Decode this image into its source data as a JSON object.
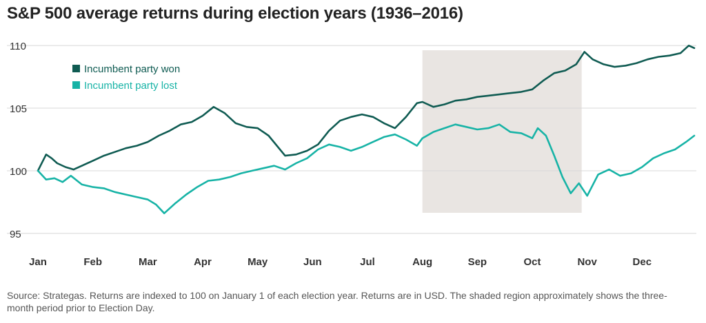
{
  "title": "S&P 500 average returns during election years (1936–2016)",
  "source": "Source: Strategas. Returns are indexed to 100 on January 1 of each election year. Returns are in USD. The shaded region approximately shows the three-month period prior to Election Day.",
  "colors": {
    "won": "#0f5b52",
    "lost": "#17b3a6",
    "shade": "#e9e5e2",
    "grid": "#d8d8d8"
  },
  "chart_data": {
    "type": "line",
    "title": "S&P 500 average returns during election years (1936–2016)",
    "xlabel": "",
    "ylabel": "",
    "x_ticks": [
      "Jan",
      "Feb",
      "Mar",
      "Apr",
      "May",
      "Jun",
      "Jul",
      "Aug",
      "Sep",
      "Oct",
      "Nov",
      "Dec"
    ],
    "y_ticks": [
      95,
      100,
      105,
      110
    ],
    "ylim": [
      94,
      111
    ],
    "xlim": [
      0,
      11.95
    ],
    "shaded_region": {
      "x_start": 7.0,
      "x_end": 9.9
    },
    "legend_position": "top-left",
    "series": [
      {
        "name": "Incumbent party won",
        "color": "#0f5b52",
        "x": [
          0,
          0.15,
          0.25,
          0.35,
          0.5,
          0.65,
          0.8,
          1.0,
          1.2,
          1.4,
          1.6,
          1.8,
          2.0,
          2.2,
          2.4,
          2.6,
          2.8,
          3.0,
          3.2,
          3.4,
          3.6,
          3.8,
          4.0,
          4.2,
          4.5,
          4.7,
          4.9,
          5.1,
          5.3,
          5.5,
          5.7,
          5.9,
          6.1,
          6.3,
          6.5,
          6.7,
          6.9,
          7.0,
          7.2,
          7.4,
          7.6,
          7.8,
          8.0,
          8.2,
          8.4,
          8.6,
          8.8,
          9.0,
          9.2,
          9.4,
          9.6,
          9.8,
          9.95,
          10.1,
          10.3,
          10.5,
          10.7,
          10.9,
          11.1,
          11.3,
          11.5,
          11.7,
          11.85,
          11.95
        ],
        "values": [
          100.0,
          101.3,
          101.0,
          100.6,
          100.3,
          100.1,
          100.4,
          100.8,
          101.2,
          101.5,
          101.8,
          102.0,
          102.3,
          102.8,
          103.2,
          103.7,
          103.9,
          104.4,
          105.1,
          104.6,
          103.8,
          103.5,
          103.4,
          102.8,
          101.2,
          101.3,
          101.6,
          102.1,
          103.2,
          104.0,
          104.3,
          104.5,
          104.3,
          103.8,
          103.4,
          104.3,
          105.4,
          105.5,
          105.1,
          105.3,
          105.6,
          105.7,
          105.9,
          106.0,
          106.1,
          106.2,
          106.3,
          106.5,
          107.2,
          107.8,
          108.0,
          108.5,
          109.5,
          108.9,
          108.5,
          108.3,
          108.4,
          108.6,
          108.9,
          109.1,
          109.2,
          109.4,
          110.0,
          109.8
        ]
      },
      {
        "name": "Incumbent party lost",
        "color": "#17b3a6",
        "x": [
          0,
          0.15,
          0.3,
          0.45,
          0.6,
          0.8,
          1.0,
          1.2,
          1.4,
          1.6,
          1.8,
          2.0,
          2.15,
          2.3,
          2.5,
          2.7,
          2.9,
          3.1,
          3.3,
          3.5,
          3.7,
          3.9,
          4.1,
          4.3,
          4.5,
          4.7,
          4.9,
          5.1,
          5.3,
          5.5,
          5.7,
          5.9,
          6.1,
          6.3,
          6.5,
          6.7,
          6.9,
          7.0,
          7.2,
          7.4,
          7.6,
          7.8,
          8.0,
          8.2,
          8.4,
          8.6,
          8.8,
          9.0,
          9.1,
          9.25,
          9.4,
          9.55,
          9.7,
          9.85,
          10.0,
          10.2,
          10.4,
          10.6,
          10.8,
          11.0,
          11.2,
          11.4,
          11.6,
          11.8,
          11.95
        ],
        "values": [
          100.0,
          99.3,
          99.4,
          99.1,
          99.6,
          98.9,
          98.7,
          98.6,
          98.3,
          98.1,
          97.9,
          97.7,
          97.3,
          96.6,
          97.4,
          98.1,
          98.7,
          99.2,
          99.3,
          99.5,
          99.8,
          100.0,
          100.2,
          100.4,
          100.1,
          100.6,
          101.0,
          101.7,
          102.1,
          101.9,
          101.6,
          101.9,
          102.3,
          102.7,
          102.9,
          102.5,
          102.0,
          102.6,
          103.1,
          103.4,
          103.7,
          103.5,
          103.3,
          103.4,
          103.7,
          103.1,
          103.0,
          102.6,
          103.4,
          102.8,
          101.2,
          99.5,
          98.2,
          99.0,
          98.0,
          99.7,
          100.1,
          99.6,
          99.8,
          100.3,
          101.0,
          101.4,
          101.7,
          102.3,
          102.8
        ]
      }
    ]
  }
}
